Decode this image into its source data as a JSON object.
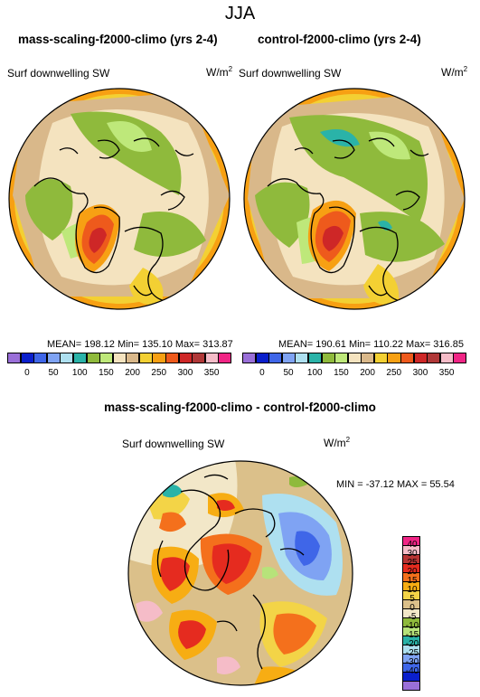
{
  "season": "JJA",
  "panels": [
    {
      "title": "mass-scaling-f2000-climo (yrs 2-4)",
      "variable": "Surf downwelling SW",
      "units": "W/m",
      "units_sup": "2",
      "stats": "MEAN= 198.12  Min= 135.10  Max= 313.87"
    },
    {
      "title": "control-f2000-climo (yrs 2-4)",
      "variable": "Surf downwelling SW",
      "units": "W/m",
      "units_sup": "2",
      "stats": "MEAN= 190.61  Min= 110.22  Max= 316.85"
    }
  ],
  "field_colorbar": {
    "labels": [
      "0",
      "50",
      "100",
      "150",
      "200",
      "250",
      "300",
      "350"
    ],
    "colors": [
      "#9a6fd8",
      "#0a1fcc",
      "#3f66e8",
      "#7fa3f3",
      "#aee0f0",
      "#2ab3a8",
      "#8fba3c",
      "#bee87a",
      "#f4e3bf",
      "#d9b88a",
      "#f3d033",
      "#f7a013",
      "#ee5a1c",
      "#ce2727",
      "#b03838",
      "#f5bcc8",
      "#f02585"
    ]
  },
  "difference": {
    "title": "mass-scaling-f2000-climo - control-f2000-climo",
    "variable": "Surf downwelling SW",
    "units": "W/m",
    "units_sup": "2",
    "stats": "MIN = -37.12 MAX =  55.54",
    "colorbar": {
      "labels": [
        "40",
        "30",
        "25",
        "20",
        "15",
        "10",
        "5",
        "0",
        "-5",
        "-10",
        "-15",
        "-20",
        "-25",
        "-30",
        "-40"
      ],
      "colors": [
        "#f02585",
        "#f5bcc8",
        "#b83434",
        "#e52b1f",
        "#f4701c",
        "#f7ad13",
        "#f3d447",
        "#dbc08a",
        "#f2e7c8",
        "#8fba3c",
        "#b7e37a",
        "#2ab3a8",
        "#aee0f0",
        "#7fa3f3",
        "#3f66e8",
        "#0a1fcc",
        "#9a6fd8"
      ]
    }
  }
}
